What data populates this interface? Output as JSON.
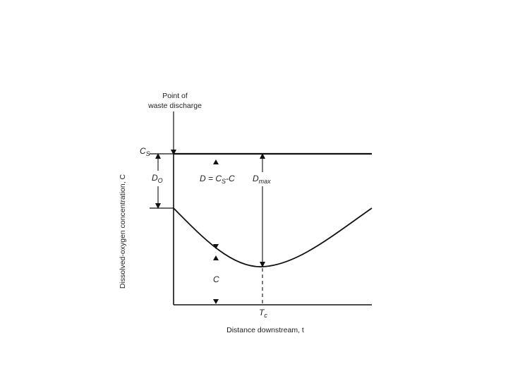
{
  "diagram": {
    "discharge_label_line1": "Point of",
    "discharge_label_line2": "waste discharge",
    "y_axis_label": "Dissolved-oxygen concentration, C",
    "x_axis_label": "Distance downstream, t",
    "cs_main": "C",
    "cs_sub": "S",
    "d0_main": "D",
    "d0_sub": "O",
    "deficit_prefix": "D = C",
    "deficit_sub": "S",
    "deficit_suffix": "-C",
    "dmax_main": "D",
    "dmax_sub": "max",
    "c_label": "C",
    "tc_main": "T",
    "tc_sub": "c"
  },
  "colors": {
    "line": "#111111",
    "text": "#222222",
    "background": "#ffffff"
  }
}
